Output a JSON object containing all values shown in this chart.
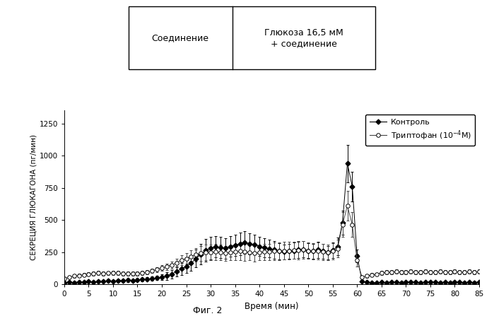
{
  "title": "Фиг. 2",
  "ylabel": "СЕКРЕЦИЯ ГЛЮКАГОНА (пг/мин)",
  "xlabel": "Время (мин)",
  "xlim": [
    0,
    85
  ],
  "ylim": [
    0,
    1350
  ],
  "yticks": [
    0,
    250,
    500,
    750,
    1000,
    1250
  ],
  "xticks": [
    0,
    5,
    10,
    15,
    20,
    25,
    30,
    35,
    40,
    45,
    50,
    55,
    60,
    65,
    70,
    75,
    80,
    85
  ],
  "legend_label_control": "Контроль",
  "legend_label_tryptophan": "Триптофан (10",
  "table_col1": "Соединение",
  "table_col2": "Глюкоза 16,5 мМ\n+ соединение",
  "control_x": [
    0,
    1,
    2,
    3,
    4,
    5,
    6,
    7,
    8,
    9,
    10,
    11,
    12,
    13,
    14,
    15,
    16,
    17,
    18,
    19,
    20,
    21,
    22,
    23,
    24,
    25,
    26,
    27,
    28,
    29,
    30,
    31,
    32,
    33,
    34,
    35,
    36,
    37,
    38,
    39,
    40,
    41,
    42,
    43,
    44,
    45,
    46,
    47,
    48,
    49,
    50,
    51,
    52,
    53,
    54,
    55,
    56,
    57,
    58,
    59,
    60,
    61,
    62,
    63,
    64,
    65,
    66,
    67,
    68,
    69,
    70,
    71,
    72,
    73,
    74,
    75,
    76,
    77,
    78,
    79,
    80,
    81,
    82,
    83,
    84,
    85
  ],
  "control_y": [
    15,
    18,
    15,
    20,
    18,
    22,
    20,
    25,
    22,
    28,
    25,
    30,
    28,
    32,
    30,
    35,
    38,
    42,
    45,
    50,
    58,
    65,
    80,
    100,
    120,
    140,
    165,
    200,
    235,
    265,
    280,
    295,
    285,
    280,
    295,
    305,
    315,
    325,
    315,
    310,
    295,
    285,
    278,
    268,
    258,
    252,
    258,
    262,
    268,
    272,
    262,
    258,
    268,
    258,
    248,
    265,
    295,
    480,
    940,
    760,
    220,
    25,
    18,
    15,
    12,
    18,
    15,
    20,
    18,
    15,
    18,
    20,
    18,
    15,
    18,
    20,
    18,
    15,
    18,
    15,
    18,
    18,
    15,
    18,
    15,
    20
  ],
  "control_yerr": [
    8,
    8,
    8,
    8,
    8,
    8,
    10,
    10,
    10,
    10,
    12,
    12,
    12,
    12,
    12,
    12,
    12,
    12,
    15,
    18,
    22,
    28,
    32,
    38,
    48,
    52,
    58,
    68,
    78,
    88,
    88,
    82,
    82,
    78,
    78,
    82,
    88,
    88,
    82,
    78,
    72,
    72,
    68,
    68,
    62,
    58,
    58,
    62,
    62,
    62,
    58,
    58,
    62,
    58,
    52,
    58,
    68,
    95,
    145,
    115,
    48,
    8,
    8,
    6,
    6,
    6,
    6,
    6,
    6,
    6,
    6,
    6,
    6,
    6,
    6,
    6,
    6,
    6,
    6,
    6,
    6,
    6,
    6,
    6,
    6,
    6
  ],
  "tryptophan_x": [
    0,
    1,
    2,
    3,
    4,
    5,
    6,
    7,
    8,
    9,
    10,
    11,
    12,
    13,
    14,
    15,
    16,
    17,
    18,
    19,
    20,
    21,
    22,
    23,
    24,
    25,
    26,
    27,
    28,
    29,
    30,
    31,
    32,
    33,
    34,
    35,
    36,
    37,
    38,
    39,
    40,
    41,
    42,
    43,
    44,
    45,
    46,
    47,
    48,
    49,
    50,
    51,
    52,
    53,
    54,
    55,
    56,
    57,
    58,
    59,
    60,
    61,
    62,
    63,
    64,
    65,
    66,
    67,
    68,
    69,
    70,
    71,
    72,
    73,
    74,
    75,
    76,
    77,
    78,
    79,
    80,
    81,
    82,
    83,
    84,
    85
  ],
  "tryptophan_y": [
    45,
    55,
    65,
    70,
    75,
    80,
    85,
    90,
    85,
    88,
    90,
    90,
    85,
    83,
    83,
    85,
    90,
    95,
    105,
    115,
    128,
    138,
    152,
    168,
    188,
    202,
    218,
    232,
    242,
    248,
    248,
    252,
    248,
    242,
    248,
    252,
    258,
    252,
    248,
    242,
    248,
    252,
    252,
    258,
    258,
    262,
    262,
    265,
    265,
    268,
    262,
    258,
    258,
    252,
    250,
    258,
    278,
    465,
    610,
    465,
    188,
    55,
    65,
    75,
    80,
    90,
    95,
    95,
    100,
    95,
    95,
    100,
    95,
    95,
    100,
    95,
    95,
    100,
    95,
    95,
    100,
    95,
    95,
    100,
    95,
    100
  ],
  "tryptophan_yerr": [
    12,
    12,
    15,
    15,
    15,
    15,
    15,
    15,
    15,
    15,
    15,
    15,
    15,
    15,
    15,
    15,
    15,
    15,
    18,
    20,
    22,
    25,
    28,
    32,
    38,
    42,
    48,
    52,
    58,
    62,
    62,
    62,
    62,
    58,
    58,
    62,
    68,
    68,
    62,
    62,
    62,
    65,
    65,
    68,
    68,
    70,
    68,
    68,
    70,
    70,
    65,
    62,
    65,
    62,
    60,
    62,
    68,
    95,
    115,
    95,
    48,
    12,
    12,
    12,
    12,
    15,
    15,
    15,
    15,
    15,
    15,
    15,
    15,
    15,
    15,
    15,
    15,
    15,
    15,
    15,
    15,
    15,
    15,
    15,
    15,
    15
  ],
  "line_color_control": "#000000",
  "line_color_tryptophan": "#444444",
  "background_color": "#ffffff"
}
